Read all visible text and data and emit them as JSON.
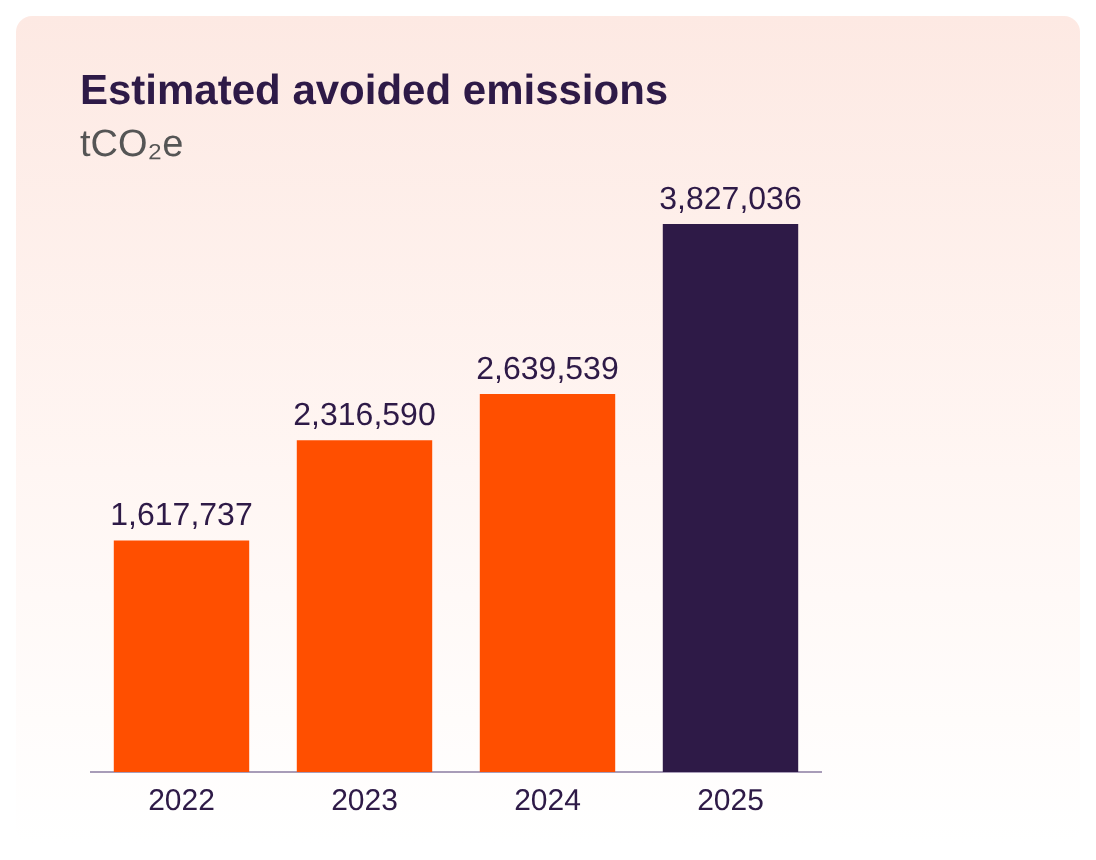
{
  "chart_data": {
    "type": "bar",
    "title": "Estimated avoided emissions",
    "subtitle": "tCO₂e",
    "categories": [
      "2022",
      "2023",
      "2024",
      "2025"
    ],
    "values": [
      1617737,
      2316590,
      2639539,
      3827036
    ],
    "colors": [
      "#ff4f00",
      "#ff4f00",
      "#ff4f00",
      "#2e1a47"
    ],
    "value_labels": [
      "1,617,737",
      "2,316,590",
      "2,639,539",
      "3,827,036"
    ]
  }
}
